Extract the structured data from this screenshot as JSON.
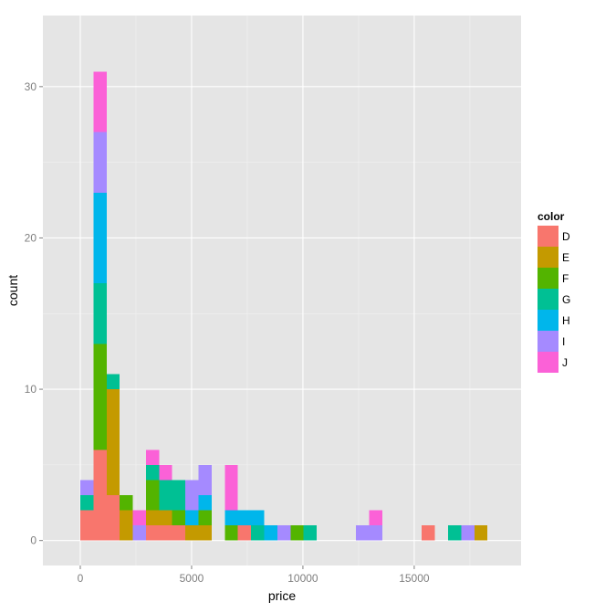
{
  "chart_data": {
    "type": "bar",
    "stacked": true,
    "xlabel": "price",
    "ylabel": "count",
    "xlim": [
      -1680,
      19800
    ],
    "ylim": [
      -1.65,
      34.7
    ],
    "x_ticks": [
      0,
      5000,
      10000,
      15000
    ],
    "x_tick_labels": [
      "0",
      "5000",
      "10000",
      "15000"
    ],
    "y_ticks": [
      0,
      10,
      20,
      30
    ],
    "y_tick_labels": [
      "0",
      "10",
      "20",
      "30"
    ],
    "bin_width": 590,
    "bins": [
      0,
      590,
      1180,
      1770,
      2360,
      2950,
      3540,
      4130,
      4720,
      5310,
      5900,
      6490,
      7080,
      7670,
      8260,
      8850,
      9440,
      10030,
      10620,
      11210,
      11800,
      12390,
      12980,
      13570,
      14160,
      14750,
      15340,
      15930,
      16520,
      17110,
      17700
    ],
    "grid": true,
    "legend": {
      "title": "color",
      "position": "right"
    },
    "series": [
      {
        "name": "D",
        "color": "#F8766D",
        "values": [
          2,
          6,
          3,
          0,
          0,
          1,
          1,
          1,
          0,
          0,
          0,
          0,
          1,
          0,
          0,
          0,
          0,
          0,
          0,
          0,
          0,
          0,
          0,
          0,
          0,
          0,
          1,
          0,
          0,
          0,
          0
        ]
      },
      {
        "name": "E",
        "color": "#C49A00",
        "values": [
          0,
          0,
          7,
          2,
          0,
          1,
          1,
          0,
          1,
          1,
          0,
          0,
          0,
          0,
          0,
          0,
          0,
          0,
          0,
          0,
          0,
          0,
          0,
          0,
          0,
          0,
          0,
          0,
          0,
          0,
          1
        ]
      },
      {
        "name": "F",
        "color": "#53B400",
        "values": [
          0,
          7,
          0,
          1,
          0,
          2,
          0,
          1,
          0,
          1,
          0,
          1,
          0,
          0,
          0,
          0,
          1,
          0,
          0,
          0,
          0,
          0,
          0,
          0,
          0,
          0,
          0,
          0,
          0,
          0,
          0
        ]
      },
      {
        "name": "G",
        "color": "#00C094",
        "values": [
          1,
          4,
          1,
          0,
          0,
          1,
          2,
          2,
          0,
          0,
          0,
          0,
          0,
          1,
          0,
          0,
          0,
          1,
          0,
          0,
          0,
          0,
          0,
          0,
          0,
          0,
          0,
          0,
          1,
          0,
          0
        ]
      },
      {
        "name": "H",
        "color": "#00B6EB",
        "values": [
          0,
          6,
          0,
          0,
          0,
          0,
          0,
          0,
          1,
          1,
          0,
          1,
          1,
          1,
          1,
          0,
          0,
          0,
          0,
          0,
          0,
          0,
          0,
          0,
          0,
          0,
          0,
          0,
          0,
          0,
          0
        ]
      },
      {
        "name": "I",
        "color": "#A58AFF",
        "values": [
          1,
          4,
          0,
          0,
          1,
          0,
          0,
          0,
          2,
          2,
          0,
          0,
          0,
          0,
          0,
          1,
          0,
          0,
          0,
          0,
          0,
          1,
          1,
          0,
          0,
          0,
          0,
          0,
          0,
          1,
          0
        ]
      },
      {
        "name": "J",
        "color": "#FB61D7",
        "values": [
          0,
          4,
          0,
          0,
          1,
          1,
          1,
          0,
          0,
          0,
          0,
          3,
          0,
          0,
          0,
          0,
          0,
          0,
          0,
          0,
          0,
          0,
          1,
          0,
          0,
          0,
          0,
          0,
          0,
          0,
          0
        ]
      }
    ]
  }
}
